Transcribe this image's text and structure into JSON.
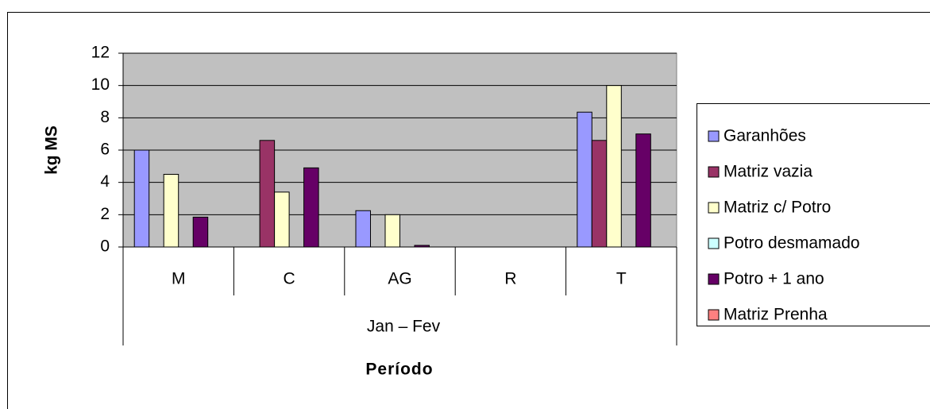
{
  "chart_data": {
    "type": "bar",
    "categories": [
      "M",
      "C",
      "AG",
      "R",
      "T"
    ],
    "category_group": "Jan – Fev",
    "x_label": "Período",
    "y_label": "kg MS",
    "series": [
      {
        "name": "Garanhões",
        "color": "#9999ff",
        "values": [
          6,
          0,
          2.25,
          0,
          8.35
        ]
      },
      {
        "name": "Matriz vazia",
        "color": "#993366",
        "values": [
          0,
          6.6,
          0,
          0,
          6.6
        ]
      },
      {
        "name": "Matriz c/ Potro",
        "color": "#ffffcc",
        "values": [
          4.5,
          3.4,
          2.0,
          0,
          10
        ]
      },
      {
        "name": "Potro desmamado",
        "color": "#ccffff",
        "values": [
          0,
          0,
          0,
          0,
          0
        ]
      },
      {
        "name": "Potro + 1 ano",
        "color": "#660066",
        "values": [
          1.85,
          4.9,
          0.1,
          0,
          7
        ]
      },
      {
        "name": "Matriz Prenha",
        "color": "#ff8080",
        "values": [
          0,
          0,
          0,
          0,
          0
        ]
      }
    ],
    "ylim": [
      0,
      12
    ],
    "yticks": [
      0,
      2,
      4,
      6,
      8,
      10,
      12
    ],
    "grid": true,
    "legend": "right"
  }
}
